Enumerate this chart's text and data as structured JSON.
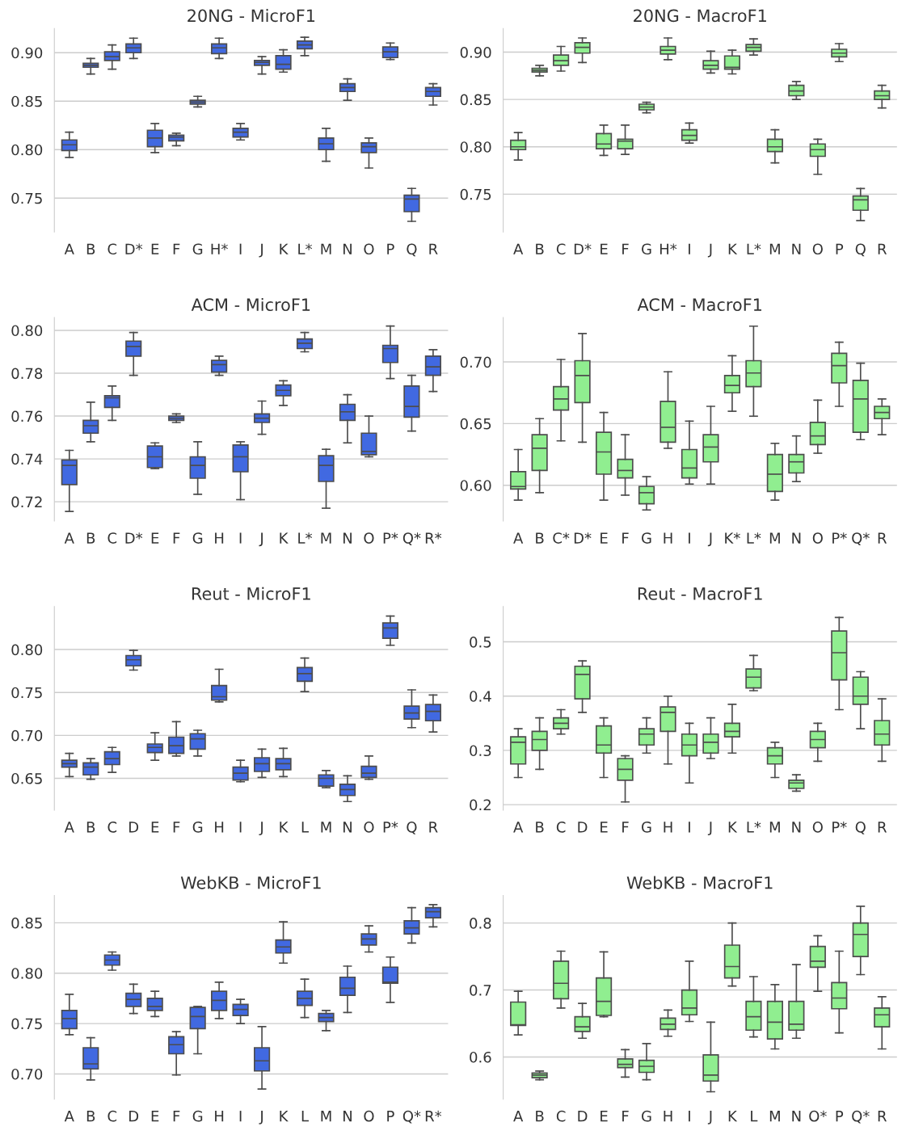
{
  "chart_data": [
    {
      "type": "box",
      "title": "20NG - MicroF1",
      "color": "#4169e1",
      "grid": "y",
      "ylim": [
        0.715,
        0.925
      ],
      "yticks": [
        0.75,
        {
          "value": 0.8,
          "label": "0.80"
        },
        0.85,
        {
          "value": 0.9,
          "label": "0.90"
        }
      ],
      "categories": [
        "A",
        "B",
        "C",
        "D*",
        "E",
        "F",
        "G",
        "H*",
        "I",
        "J",
        "K",
        "L*",
        "M",
        "N",
        "O",
        "P",
        "Q",
        "R"
      ],
      "boxes": [
        {
          "low": 0.792,
          "q1": 0.799,
          "median": 0.805,
          "q3": 0.81,
          "high": 0.818
        },
        {
          "low": 0.878,
          "q1": 0.885,
          "median": 0.887,
          "q3": 0.889,
          "high": 0.894
        },
        {
          "low": 0.883,
          "q1": 0.892,
          "median": 0.896,
          "q3": 0.901,
          "high": 0.908
        },
        {
          "low": 0.894,
          "q1": 0.9,
          "median": 0.905,
          "q3": 0.909,
          "high": 0.915
        },
        {
          "low": 0.797,
          "q1": 0.803,
          "median": 0.812,
          "q3": 0.82,
          "high": 0.827
        },
        {
          "low": 0.804,
          "q1": 0.809,
          "median": 0.813,
          "q3": 0.815,
          "high": 0.817
        },
        {
          "low": 0.844,
          "q1": 0.847,
          "median": 0.849,
          "q3": 0.851,
          "high": 0.855
        },
        {
          "low": 0.894,
          "q1": 0.899,
          "median": 0.905,
          "q3": 0.909,
          "high": 0.915
        },
        {
          "low": 0.81,
          "q1": 0.813,
          "median": 0.818,
          "q3": 0.822,
          "high": 0.827
        },
        {
          "low": 0.878,
          "q1": 0.887,
          "median": 0.89,
          "q3": 0.892,
          "high": 0.896
        },
        {
          "low": 0.88,
          "q1": 0.883,
          "median": 0.888,
          "q3": 0.897,
          "high": 0.903
        },
        {
          "low": 0.897,
          "q1": 0.904,
          "median": 0.908,
          "q3": 0.912,
          "high": 0.916
        },
        {
          "low": 0.788,
          "q1": 0.8,
          "median": 0.806,
          "q3": 0.812,
          "high": 0.822
        },
        {
          "low": 0.851,
          "q1": 0.86,
          "median": 0.864,
          "q3": 0.868,
          "high": 0.873
        },
        {
          "low": 0.781,
          "q1": 0.797,
          "median": 0.803,
          "q3": 0.807,
          "high": 0.812
        },
        {
          "low": 0.893,
          "q1": 0.895,
          "median": 0.901,
          "q3": 0.906,
          "high": 0.91
        },
        {
          "low": 0.726,
          "q1": 0.736,
          "median": 0.749,
          "q3": 0.753,
          "high": 0.76
        },
        {
          "low": 0.846,
          "q1": 0.855,
          "median": 0.86,
          "q3": 0.864,
          "high": 0.868
        }
      ]
    },
    {
      "type": "box",
      "title": "20NG - MacroF1",
      "color": "#90ee90",
      "grid": "y",
      "ylim": [
        0.71,
        0.925
      ],
      "yticks": [
        0.75,
        {
          "value": 0.8,
          "label": "0.80"
        },
        0.85,
        {
          "value": 0.9,
          "label": "0.90"
        }
      ],
      "categories": [
        "A",
        "B",
        "C",
        "D*",
        "E",
        "F",
        "G",
        "H*",
        "I",
        "J",
        "K",
        "L*",
        "M",
        "N",
        "O",
        "P",
        "Q",
        "R"
      ],
      "boxes": [
        {
          "low": 0.786,
          "q1": 0.797,
          "median": 0.8,
          "q3": 0.807,
          "high": 0.815
        },
        {
          "low": 0.875,
          "q1": 0.879,
          "median": 0.881,
          "q3": 0.883,
          "high": 0.886
        },
        {
          "low": 0.88,
          "q1": 0.886,
          "median": 0.891,
          "q3": 0.897,
          "high": 0.906
        },
        {
          "low": 0.889,
          "q1": 0.899,
          "median": 0.905,
          "q3": 0.91,
          "high": 0.915
        },
        {
          "low": 0.791,
          "q1": 0.798,
          "median": 0.803,
          "q3": 0.814,
          "high": 0.823
        },
        {
          "low": 0.792,
          "q1": 0.798,
          "median": 0.806,
          "q3": 0.808,
          "high": 0.823
        },
        {
          "low": 0.836,
          "q1": 0.839,
          "median": 0.842,
          "q3": 0.845,
          "high": 0.847
        },
        {
          "low": 0.892,
          "q1": 0.898,
          "median": 0.902,
          "q3": 0.906,
          "high": 0.915
        },
        {
          "low": 0.804,
          "q1": 0.807,
          "median": 0.812,
          "q3": 0.818,
          "high": 0.825
        },
        {
          "low": 0.878,
          "q1": 0.882,
          "median": 0.886,
          "q3": 0.891,
          "high": 0.901
        },
        {
          "low": 0.877,
          "q1": 0.882,
          "median": 0.884,
          "q3": 0.896,
          "high": 0.902
        },
        {
          "low": 0.897,
          "q1": 0.901,
          "median": 0.905,
          "q3": 0.908,
          "high": 0.914
        },
        {
          "low": 0.783,
          "q1": 0.795,
          "median": 0.8,
          "q3": 0.808,
          "high": 0.818
        },
        {
          "low": 0.85,
          "q1": 0.854,
          "median": 0.859,
          "q3": 0.865,
          "high": 0.869
        },
        {
          "low": 0.771,
          "q1": 0.79,
          "median": 0.797,
          "q3": 0.803,
          "high": 0.808
        },
        {
          "low": 0.89,
          "q1": 0.895,
          "median": 0.899,
          "q3": 0.903,
          "high": 0.909
        },
        {
          "low": 0.722,
          "q1": 0.733,
          "median": 0.744,
          "q3": 0.748,
          "high": 0.756
        },
        {
          "low": 0.841,
          "q1": 0.85,
          "median": 0.854,
          "q3": 0.859,
          "high": 0.865
        }
      ]
    },
    {
      "type": "box",
      "title": "ACM - MicroF1",
      "color": "#4169e1",
      "grid": "y",
      "ylim": [
        0.711,
        0.806
      ],
      "yticks": [
        {
          "value": 0.72,
          "label": "0.72"
        },
        {
          "value": 0.74,
          "label": "0.74"
        },
        {
          "value": 0.76,
          "label": "0.76"
        },
        {
          "value": 0.78,
          "label": "0.78"
        },
        {
          "value": 0.8,
          "label": "0.80"
        }
      ],
      "categories": [
        "A",
        "B",
        "C",
        "D*",
        "E",
        "F",
        "G",
        "H",
        "I",
        "J",
        "K",
        "L*",
        "M",
        "N",
        "O",
        "P*",
        "Q*",
        "R*"
      ],
      "boxes": [
        {
          "low": 0.7155,
          "q1": 0.728,
          "median": 0.737,
          "q3": 0.7395,
          "high": 0.744
        },
        {
          "low": 0.748,
          "q1": 0.752,
          "median": 0.7555,
          "q3": 0.758,
          "high": 0.7665
        },
        {
          "low": 0.758,
          "q1": 0.764,
          "median": 0.7685,
          "q3": 0.7695,
          "high": 0.774
        },
        {
          "low": 0.779,
          "q1": 0.788,
          "median": 0.7925,
          "q3": 0.795,
          "high": 0.799
        },
        {
          "low": 0.7355,
          "q1": 0.736,
          "median": 0.741,
          "q3": 0.746,
          "high": 0.7475
        },
        {
          "low": 0.757,
          "q1": 0.758,
          "median": 0.759,
          "q3": 0.76,
          "high": 0.761
        },
        {
          "low": 0.7235,
          "q1": 0.731,
          "median": 0.737,
          "q3": 0.741,
          "high": 0.748
        },
        {
          "low": 0.779,
          "q1": 0.7805,
          "median": 0.784,
          "q3": 0.786,
          "high": 0.788
        },
        {
          "low": 0.721,
          "q1": 0.734,
          "median": 0.741,
          "q3": 0.7465,
          "high": 0.748
        },
        {
          "low": 0.7515,
          "q1": 0.757,
          "median": 0.759,
          "q3": 0.761,
          "high": 0.767
        },
        {
          "low": 0.765,
          "q1": 0.7695,
          "median": 0.772,
          "q3": 0.7745,
          "high": 0.7765
        },
        {
          "low": 0.79,
          "q1": 0.7915,
          "median": 0.794,
          "q3": 0.796,
          "high": 0.799
        },
        {
          "low": 0.717,
          "q1": 0.7295,
          "median": 0.737,
          "q3": 0.7415,
          "high": 0.7445
        },
        {
          "low": 0.7475,
          "q1": 0.758,
          "median": 0.762,
          "q3": 0.7655,
          "high": 0.77
        },
        {
          "low": 0.741,
          "q1": 0.742,
          "median": 0.7435,
          "q3": 0.752,
          "high": 0.76
        },
        {
          "low": 0.7775,
          "q1": 0.785,
          "median": 0.7915,
          "q3": 0.793,
          "high": 0.802
        },
        {
          "low": 0.753,
          "q1": 0.7595,
          "median": 0.7645,
          "q3": 0.774,
          "high": 0.779
        },
        {
          "low": 0.7715,
          "q1": 0.779,
          "median": 0.783,
          "q3": 0.788,
          "high": 0.791
        }
      ]
    },
    {
      "type": "box",
      "title": "ACM - MacroF1",
      "color": "#90ee90",
      "grid": "y",
      "ylim": [
        0.571,
        0.736
      ],
      "yticks": [
        {
          "value": 0.6,
          "label": "0.60"
        },
        0.65,
        {
          "value": 0.7,
          "label": "0.70"
        }
      ],
      "categories": [
        "A",
        "B",
        "C*",
        "D*",
        "E",
        "F",
        "G",
        "H",
        "I",
        "J",
        "K*",
        "L*",
        "M",
        "N",
        "O",
        "P*",
        "Q*",
        "R"
      ],
      "boxes": [
        {
          "low": 0.588,
          "q1": 0.597,
          "median": 0.599,
          "q3": 0.611,
          "high": 0.629
        },
        {
          "low": 0.594,
          "q1": 0.612,
          "median": 0.63,
          "q3": 0.641,
          "high": 0.654
        },
        {
          "low": 0.636,
          "q1": 0.661,
          "median": 0.67,
          "q3": 0.68,
          "high": 0.702
        },
        {
          "low": 0.635,
          "q1": 0.667,
          "median": 0.689,
          "q3": 0.701,
          "high": 0.723
        },
        {
          "low": 0.588,
          "q1": 0.609,
          "median": 0.627,
          "q3": 0.643,
          "high": 0.659
        },
        {
          "low": 0.592,
          "q1": 0.606,
          "median": 0.612,
          "q3": 0.621,
          "high": 0.641
        },
        {
          "low": 0.58,
          "q1": 0.585,
          "median": 0.594,
          "q3": 0.599,
          "high": 0.607
        },
        {
          "low": 0.63,
          "q1": 0.635,
          "median": 0.647,
          "q3": 0.668,
          "high": 0.692
        },
        {
          "low": 0.601,
          "q1": 0.606,
          "median": 0.614,
          "q3": 0.629,
          "high": 0.652
        },
        {
          "low": 0.601,
          "q1": 0.619,
          "median": 0.631,
          "q3": 0.641,
          "high": 0.664
        },
        {
          "low": 0.66,
          "q1": 0.675,
          "median": 0.681,
          "q3": 0.689,
          "high": 0.705
        },
        {
          "low": 0.656,
          "q1": 0.68,
          "median": 0.691,
          "q3": 0.701,
          "high": 0.729
        },
        {
          "low": 0.588,
          "q1": 0.595,
          "median": 0.609,
          "q3": 0.625,
          "high": 0.634
        },
        {
          "low": 0.603,
          "q1": 0.61,
          "median": 0.619,
          "q3": 0.625,
          "high": 0.64
        },
        {
          "low": 0.626,
          "q1": 0.633,
          "median": 0.64,
          "q3": 0.651,
          "high": 0.669
        },
        {
          "low": 0.664,
          "q1": 0.683,
          "median": 0.697,
          "q3": 0.707,
          "high": 0.716
        },
        {
          "low": 0.637,
          "q1": 0.643,
          "median": 0.67,
          "q3": 0.685,
          "high": 0.699
        },
        {
          "low": 0.641,
          "q1": 0.654,
          "median": 0.659,
          "q3": 0.664,
          "high": 0.67
        }
      ]
    },
    {
      "type": "box",
      "title": "Reut - MicroF1",
      "color": "#4169e1",
      "grid": "y",
      "ylim": [
        0.613,
        0.85
      ],
      "yticks": [
        0.65,
        {
          "value": 0.7,
          "label": "0.70"
        },
        0.75,
        {
          "value": 0.8,
          "label": "0.80"
        }
      ],
      "categories": [
        "A",
        "B",
        "C",
        "D",
        "E",
        "F",
        "G",
        "H",
        "I",
        "J",
        "K",
        "L",
        "M",
        "N",
        "O",
        "P*",
        "Q",
        "R"
      ],
      "boxes": [
        {
          "low": 0.652,
          "q1": 0.663,
          "median": 0.667,
          "q3": 0.671,
          "high": 0.679
        },
        {
          "low": 0.649,
          "q1": 0.654,
          "median": 0.663,
          "q3": 0.668,
          "high": 0.673
        },
        {
          "low": 0.657,
          "q1": 0.666,
          "median": 0.673,
          "q3": 0.681,
          "high": 0.686
        },
        {
          "low": 0.776,
          "q1": 0.781,
          "median": 0.788,
          "q3": 0.793,
          "high": 0.799
        },
        {
          "low": 0.671,
          "q1": 0.68,
          "median": 0.686,
          "q3": 0.69,
          "high": 0.703
        },
        {
          "low": 0.676,
          "q1": 0.679,
          "median": 0.688,
          "q3": 0.698,
          "high": 0.716
        },
        {
          "low": 0.676,
          "q1": 0.684,
          "median": 0.696,
          "q3": 0.702,
          "high": 0.706
        },
        {
          "low": 0.739,
          "q1": 0.741,
          "median": 0.745,
          "q3": 0.758,
          "high": 0.777
        },
        {
          "low": 0.646,
          "q1": 0.648,
          "median": 0.656,
          "q3": 0.663,
          "high": 0.671
        },
        {
          "low": 0.651,
          "q1": 0.658,
          "median": 0.667,
          "q3": 0.674,
          "high": 0.684
        },
        {
          "low": 0.652,
          "q1": 0.66,
          "median": 0.667,
          "q3": 0.673,
          "high": 0.685
        },
        {
          "low": 0.751,
          "q1": 0.763,
          "median": 0.772,
          "q3": 0.779,
          "high": 0.79
        },
        {
          "low": 0.639,
          "q1": 0.641,
          "median": 0.65,
          "q3": 0.654,
          "high": 0.659
        },
        {
          "low": 0.623,
          "q1": 0.63,
          "median": 0.637,
          "q3": 0.643,
          "high": 0.653
        },
        {
          "low": 0.649,
          "q1": 0.651,
          "median": 0.656,
          "q3": 0.664,
          "high": 0.676
        },
        {
          "low": 0.805,
          "q1": 0.813,
          "median": 0.825,
          "q3": 0.831,
          "high": 0.839
        },
        {
          "low": 0.709,
          "q1": 0.719,
          "median": 0.726,
          "q3": 0.734,
          "high": 0.753
        },
        {
          "low": 0.704,
          "q1": 0.717,
          "median": 0.728,
          "q3": 0.736,
          "high": 0.747
        }
      ]
    },
    {
      "type": "box",
      "title": "Reut - MacroF1",
      "color": "#90ee90",
      "grid": "y",
      "ylim": [
        0.19,
        0.565
      ],
      "yticks": [
        0.2,
        0.3,
        0.4,
        0.5
      ],
      "categories": [
        "A",
        "B",
        "C",
        "D",
        "E",
        "F",
        "G",
        "H",
        "I",
        "J",
        "K",
        "L*",
        "M",
        "N",
        "O",
        "P*",
        "Q",
        "R"
      ],
      "boxes": [
        {
          "low": 0.25,
          "q1": 0.275,
          "median": 0.315,
          "q3": 0.325,
          "high": 0.34
        },
        {
          "low": 0.265,
          "q1": 0.3,
          "median": 0.32,
          "q3": 0.335,
          "high": 0.36
        },
        {
          "low": 0.33,
          "q1": 0.34,
          "median": 0.35,
          "q3": 0.36,
          "high": 0.375
        },
        {
          "low": 0.37,
          "q1": 0.395,
          "median": 0.44,
          "q3": 0.455,
          "high": 0.465
        },
        {
          "low": 0.25,
          "q1": 0.295,
          "median": 0.31,
          "q3": 0.345,
          "high": 0.36
        },
        {
          "low": 0.205,
          "q1": 0.245,
          "median": 0.265,
          "q3": 0.285,
          "high": 0.29
        },
        {
          "low": 0.295,
          "q1": 0.31,
          "median": 0.33,
          "q3": 0.34,
          "high": 0.36
        },
        {
          "low": 0.275,
          "q1": 0.335,
          "median": 0.37,
          "q3": 0.38,
          "high": 0.4
        },
        {
          "low": 0.24,
          "q1": 0.29,
          "median": 0.31,
          "q3": 0.33,
          "high": 0.35
        },
        {
          "low": 0.285,
          "q1": 0.295,
          "median": 0.315,
          "q3": 0.33,
          "high": 0.36
        },
        {
          "low": 0.295,
          "q1": 0.325,
          "median": 0.335,
          "q3": 0.35,
          "high": 0.385
        },
        {
          "low": 0.41,
          "q1": 0.415,
          "median": 0.435,
          "q3": 0.45,
          "high": 0.475
        },
        {
          "low": 0.25,
          "q1": 0.275,
          "median": 0.29,
          "q3": 0.305,
          "high": 0.315
        },
        {
          "low": 0.225,
          "q1": 0.23,
          "median": 0.24,
          "q3": 0.245,
          "high": 0.255
        },
        {
          "low": 0.28,
          "q1": 0.305,
          "median": 0.32,
          "q3": 0.335,
          "high": 0.35
        },
        {
          "low": 0.375,
          "q1": 0.43,
          "median": 0.48,
          "q3": 0.52,
          "high": 0.545
        },
        {
          "low": 0.34,
          "q1": 0.385,
          "median": 0.4,
          "q3": 0.435,
          "high": 0.445
        },
        {
          "low": 0.28,
          "q1": 0.31,
          "median": 0.33,
          "q3": 0.355,
          "high": 0.395
        }
      ]
    },
    {
      "type": "box",
      "title": "WebKB - MicroF1",
      "color": "#4169e1",
      "grid": "y",
      "ylim": [
        0.675,
        0.877
      ],
      "yticks": [
        {
          "value": 0.7,
          "label": "0.70"
        },
        0.75,
        {
          "value": 0.8,
          "label": "0.80"
        },
        0.85
      ],
      "categories": [
        "A",
        "B",
        "C",
        "D",
        "E",
        "F",
        "G",
        "H",
        "I",
        "J",
        "K",
        "L",
        "M",
        "N",
        "O",
        "P",
        "Q*",
        "R*"
      ],
      "boxes": [
        {
          "low": 0.739,
          "q1": 0.745,
          "median": 0.755,
          "q3": 0.763,
          "high": 0.779
        },
        {
          "low": 0.694,
          "q1": 0.705,
          "median": 0.71,
          "q3": 0.726,
          "high": 0.736
        },
        {
          "low": 0.803,
          "q1": 0.808,
          "median": 0.813,
          "q3": 0.818,
          "high": 0.821
        },
        {
          "low": 0.76,
          "q1": 0.767,
          "median": 0.774,
          "q3": 0.78,
          "high": 0.789
        },
        {
          "low": 0.757,
          "q1": 0.763,
          "median": 0.767,
          "q3": 0.775,
          "high": 0.782
        },
        {
          "low": 0.699,
          "q1": 0.72,
          "median": 0.729,
          "q3": 0.737,
          "high": 0.742
        },
        {
          "low": 0.72,
          "q1": 0.745,
          "median": 0.757,
          "q3": 0.766,
          "high": 0.767
        },
        {
          "low": 0.755,
          "q1": 0.763,
          "median": 0.773,
          "q3": 0.782,
          "high": 0.791
        },
        {
          "low": 0.75,
          "q1": 0.758,
          "median": 0.764,
          "q3": 0.769,
          "high": 0.774
        },
        {
          "low": 0.685,
          "q1": 0.703,
          "median": 0.713,
          "q3": 0.726,
          "high": 0.747
        },
        {
          "low": 0.81,
          "q1": 0.82,
          "median": 0.826,
          "q3": 0.833,
          "high": 0.851
        },
        {
          "low": 0.756,
          "q1": 0.768,
          "median": 0.775,
          "q3": 0.782,
          "high": 0.794
        },
        {
          "low": 0.743,
          "q1": 0.752,
          "median": 0.756,
          "q3": 0.76,
          "high": 0.763
        },
        {
          "low": 0.761,
          "q1": 0.778,
          "median": 0.785,
          "q3": 0.796,
          "high": 0.807
        },
        {
          "low": 0.821,
          "q1": 0.828,
          "median": 0.834,
          "q3": 0.839,
          "high": 0.847
        },
        {
          "low": 0.771,
          "q1": 0.79,
          "median": 0.791,
          "q3": 0.806,
          "high": 0.816
        },
        {
          "low": 0.83,
          "q1": 0.839,
          "median": 0.845,
          "q3": 0.852,
          "high": 0.865
        },
        {
          "low": 0.846,
          "q1": 0.855,
          "median": 0.861,
          "q3": 0.865,
          "high": 0.868
        }
      ]
    },
    {
      "type": "box",
      "title": "WebKB - MacroF1",
      "color": "#90ee90",
      "grid": "y",
      "ylim": [
        0.537,
        0.841
      ],
      "yticks": [
        0.6,
        0.7,
        0.8
      ],
      "categories": [
        "A",
        "B",
        "C",
        "D",
        "E",
        "F",
        "G",
        "H",
        "I",
        "J",
        "K",
        "L",
        "M",
        "N",
        "O*",
        "P",
        "Q*",
        "R"
      ],
      "boxes": [
        {
          "low": 0.633,
          "q1": 0.647,
          "median": 0.648,
          "q3": 0.682,
          "high": 0.698
        },
        {
          "low": 0.566,
          "q1": 0.569,
          "median": 0.573,
          "q3": 0.576,
          "high": 0.579
        },
        {
          "low": 0.673,
          "q1": 0.687,
          "median": 0.71,
          "q3": 0.743,
          "high": 0.758
        },
        {
          "low": 0.628,
          "q1": 0.638,
          "median": 0.645,
          "q3": 0.66,
          "high": 0.68
        },
        {
          "low": 0.66,
          "q1": 0.662,
          "median": 0.683,
          "q3": 0.718,
          "high": 0.757
        },
        {
          "low": 0.57,
          "q1": 0.584,
          "median": 0.589,
          "q3": 0.597,
          "high": 0.611
        },
        {
          "low": 0.566,
          "q1": 0.577,
          "median": 0.586,
          "q3": 0.595,
          "high": 0.62
        },
        {
          "low": 0.631,
          "q1": 0.641,
          "median": 0.649,
          "q3": 0.658,
          "high": 0.67
        },
        {
          "low": 0.653,
          "q1": 0.663,
          "median": 0.673,
          "q3": 0.7,
          "high": 0.743
        },
        {
          "low": 0.548,
          "q1": 0.564,
          "median": 0.573,
          "q3": 0.603,
          "high": 0.652
        },
        {
          "low": 0.706,
          "q1": 0.718,
          "median": 0.735,
          "q3": 0.767,
          "high": 0.8
        },
        {
          "low": 0.63,
          "q1": 0.64,
          "median": 0.66,
          "q3": 0.683,
          "high": 0.72
        },
        {
          "low": 0.612,
          "q1": 0.627,
          "median": 0.652,
          "q3": 0.683,
          "high": 0.708
        },
        {
          "low": 0.628,
          "q1": 0.64,
          "median": 0.649,
          "q3": 0.683,
          "high": 0.738
        },
        {
          "low": 0.698,
          "q1": 0.734,
          "median": 0.743,
          "q3": 0.765,
          "high": 0.781
        },
        {
          "low": 0.636,
          "q1": 0.672,
          "median": 0.688,
          "q3": 0.711,
          "high": 0.758
        },
        {
          "low": 0.723,
          "q1": 0.75,
          "median": 0.783,
          "q3": 0.8,
          "high": 0.825
        },
        {
          "low": 0.612,
          "q1": 0.645,
          "median": 0.663,
          "q3": 0.673,
          "high": 0.69
        }
      ]
    }
  ]
}
